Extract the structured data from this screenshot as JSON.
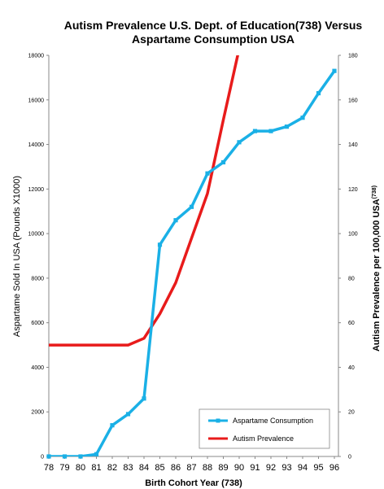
{
  "chart_data": {
    "type": "line",
    "title_line1": "Autism Prevalence U.S. Dept. of Education(738) Versus",
    "title_line2": "Aspartame Consumption USA",
    "xlabel": "Birth Cohort Year (738)",
    "ylabel_left": "Aspartame Sold In USA  (Pounds X1000)",
    "ylabel_right": "Autism Prevalence per 100,000 USA",
    "ylabel_right_ref": "(738)",
    "x": [
      "78",
      "79",
      "80",
      "81",
      "82",
      "83",
      "84",
      "85",
      "86",
      "87",
      "88",
      "89",
      "90",
      "91",
      "92",
      "93",
      "94",
      "95",
      "96"
    ],
    "ylim_left": [
      0,
      18000
    ],
    "yticks_left": [
      0,
      2000,
      4000,
      6000,
      8000,
      10000,
      12000,
      14000,
      16000,
      18000
    ],
    "ylim_right": [
      0,
      180
    ],
    "yticks_right": [
      0,
      20,
      40,
      60,
      80,
      100,
      120,
      140,
      160,
      180
    ],
    "grid": false,
    "legend_position": "bottom-right",
    "series": [
      {
        "name": "Aspartame Consumption",
        "axis": "left",
        "color": "#1ab0e6",
        "markers": true,
        "points": [
          {
            "x": "78",
            "y": 0
          },
          {
            "x": "79",
            "y": 0
          },
          {
            "x": "80",
            "y": 0
          },
          {
            "x": "81",
            "y": 100
          },
          {
            "x": "82",
            "y": 1400
          },
          {
            "x": "83",
            "y": 1900
          },
          {
            "x": "84",
            "y": 2600
          },
          {
            "x": "85",
            "y": 9500
          },
          {
            "x": "86",
            "y": 10600
          },
          {
            "x": "87",
            "y": 11200
          },
          {
            "x": "88",
            "y": 12700
          },
          {
            "x": "89",
            "y": 13200
          },
          {
            "x": "90",
            "y": 14100
          },
          {
            "x": "91",
            "y": 14600
          },
          {
            "x": "92",
            "y": 14600
          },
          {
            "x": "93",
            "y": 14800
          },
          {
            "x": "94",
            "y": 15200
          },
          {
            "x": "95",
            "y": 16300
          },
          {
            "x": "96",
            "y": 17300
          }
        ]
      },
      {
        "name": "Autism Prevalence",
        "axis": "right",
        "color": "#e81b1b",
        "markers": false,
        "points": [
          {
            "x": "78",
            "y": 50
          },
          {
            "x": "79",
            "y": 50
          },
          {
            "x": "80",
            "y": 50
          },
          {
            "x": "81",
            "y": 50
          },
          {
            "x": "82",
            "y": 50
          },
          {
            "x": "83",
            "y": 50
          },
          {
            "x": "84",
            "y": 53
          },
          {
            "x": "85",
            "y": 64
          },
          {
            "x": "86",
            "y": 78
          },
          {
            "x": "87",
            "y": 98
          },
          {
            "x": "88",
            "y": 118
          },
          {
            "x": "89",
            "y": 151
          },
          {
            "x": "90",
            "y": 183
          }
        ]
      }
    ]
  }
}
